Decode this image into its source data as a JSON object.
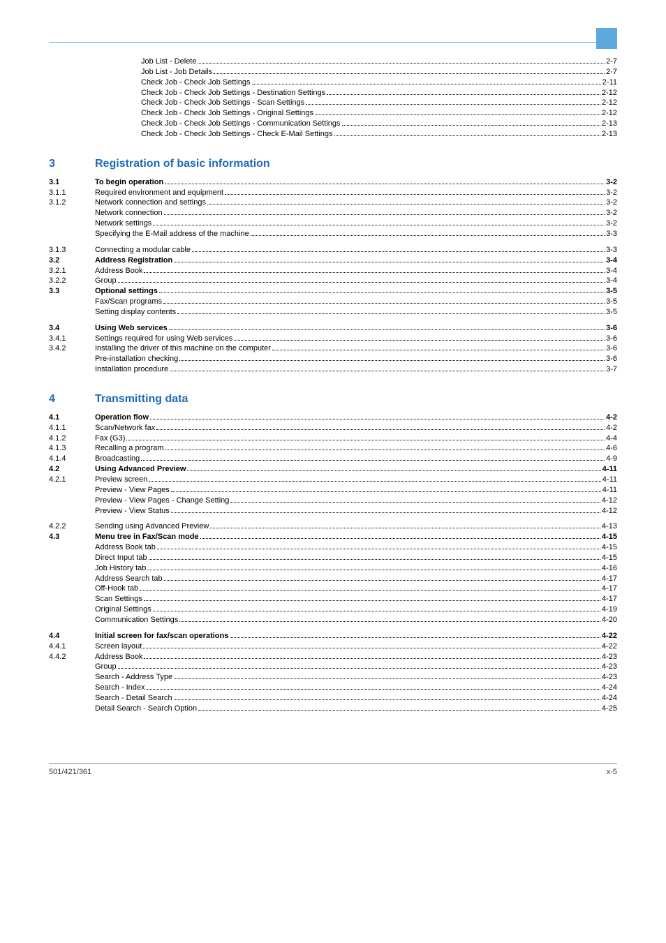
{
  "top_block": {
    "indent": 132,
    "lines": [
      {
        "label": "Job List - Delete",
        "page": "2-7"
      },
      {
        "label": "Job List - Job Details",
        "page": "2-7"
      },
      {
        "label": "Check Job - Check Job Settings",
        "page": "2-11"
      },
      {
        "label": "Check Job - Check Job Settings - Destination Settings",
        "page": "2-12"
      },
      {
        "label": "Check Job - Check Job Settings - Scan Settings",
        "page": "2-12"
      },
      {
        "label": "Check Job - Check Job Settings - Original Settings",
        "page": "2-12"
      },
      {
        "label": "Check Job - Check Job Settings - Communication Settings",
        "page": "2-13"
      },
      {
        "label": "Check Job - Check Job Settings - Check E-Mail Settings",
        "page": "2-13"
      }
    ]
  },
  "sections": [
    {
      "num": "3",
      "title": "Registration of basic information",
      "groups": [
        {
          "entries": [
            {
              "num": "3.1",
              "bold": true,
              "lines": [
                {
                  "label": "To begin operation",
                  "page": "3-2",
                  "bold": true
                }
              ]
            },
            {
              "num": "3.1.1",
              "lines": [
                {
                  "label": "Required environment and equipment",
                  "page": "3-2"
                }
              ]
            },
            {
              "num": "3.1.2",
              "lines": [
                {
                  "label": "Network connection and settings",
                  "page": "3-2"
                },
                {
                  "label": "Network connection",
                  "page": "3-2"
                },
                {
                  "label": "Network settings",
                  "page": "3-2"
                },
                {
                  "label": "Specifying the E-Mail address of the machine",
                  "page": "3-3"
                }
              ]
            }
          ]
        },
        {
          "gap": true,
          "entries": [
            {
              "num": "3.1.3",
              "lines": [
                {
                  "label": "Connecting a modular cable",
                  "page": "3-3"
                }
              ]
            },
            {
              "num": "3.2",
              "bold": true,
              "lines": [
                {
                  "label": "Address Registration",
                  "page": "3-4",
                  "bold": true
                }
              ]
            },
            {
              "num": "3.2.1",
              "lines": [
                {
                  "label": "Address Book",
                  "page": "3-4"
                }
              ]
            },
            {
              "num": "3.2.2",
              "lines": [
                {
                  "label": "Group",
                  "page": "3-4"
                }
              ]
            },
            {
              "num": "3.3",
              "bold": true,
              "lines": [
                {
                  "label": "Optional settings",
                  "page": "3-5",
                  "bold": true
                },
                {
                  "label": "Fax/Scan programs",
                  "page": "3-5"
                },
                {
                  "label": "Setting display contents",
                  "page": "3-5"
                }
              ]
            }
          ]
        },
        {
          "gap": true,
          "entries": [
            {
              "num": "3.4",
              "bold": true,
              "lines": [
                {
                  "label": "Using Web services",
                  "page": "3-6",
                  "bold": true
                }
              ]
            },
            {
              "num": "3.4.1",
              "lines": [
                {
                  "label": "Settings required for using Web services",
                  "page": "3-6"
                }
              ]
            },
            {
              "num": "3.4.2",
              "lines": [
                {
                  "label": "Installing the driver of this machine on the computer",
                  "page": "3-6"
                },
                {
                  "label": "Pre-installation checking",
                  "page": "3-6"
                },
                {
                  "label": "Installation procedure",
                  "page": "3-7"
                }
              ]
            }
          ]
        }
      ]
    },
    {
      "num": "4",
      "title": "Transmitting data",
      "groups": [
        {
          "entries": [
            {
              "num": "4.1",
              "bold": true,
              "lines": [
                {
                  "label": "Operation flow",
                  "page": "4-2",
                  "bold": true
                }
              ]
            },
            {
              "num": "4.1.1",
              "lines": [
                {
                  "label": "Scan/Network fax",
                  "page": "4-2"
                }
              ]
            },
            {
              "num": "4.1.2",
              "lines": [
                {
                  "label": "Fax (G3)",
                  "page": "4-4"
                }
              ]
            },
            {
              "num": "4.1.3",
              "lines": [
                {
                  "label": "Recalling a program",
                  "page": "4-6"
                }
              ]
            },
            {
              "num": "4.1.4",
              "lines": [
                {
                  "label": "Broadcasting",
                  "page": "4-9"
                }
              ]
            },
            {
              "num": "4.2",
              "bold": true,
              "lines": [
                {
                  "label": "Using Advanced Preview",
                  "page": "4-11",
                  "bold": true
                }
              ]
            },
            {
              "num": "4.2.1",
              "lines": [
                {
                  "label": "Preview screen",
                  "page": "4-11"
                },
                {
                  "label": "Preview - View Pages",
                  "page": "4-11"
                },
                {
                  "label": "Preview - View Pages - Change Setting",
                  "page": "4-12"
                },
                {
                  "label": "Preview - View Status",
                  "page": "4-12"
                }
              ]
            }
          ]
        },
        {
          "gap": true,
          "entries": [
            {
              "num": "4.2.2",
              "lines": [
                {
                  "label": "Sending using Advanced Preview",
                  "page": "4-13"
                }
              ]
            },
            {
              "num": "4.3",
              "bold": true,
              "lines": [
                {
                  "label": "Menu tree in Fax/Scan mode",
                  "page": "4-15",
                  "bold": true
                },
                {
                  "label": "Address Book tab",
                  "page": "4-15"
                },
                {
                  "label": "Direct Input tab",
                  "page": "4-15"
                },
                {
                  "label": "Job History tab",
                  "page": "4-16"
                },
                {
                  "label": "Address Search tab",
                  "page": "4-17"
                },
                {
                  "label": "Off-Hook tab",
                  "page": "4-17"
                },
                {
                  "label": "Scan Settings",
                  "page": "4-17"
                },
                {
                  "label": "Original Settings",
                  "page": "4-19"
                },
                {
                  "label": "Communication Settings",
                  "page": "4-20"
                }
              ]
            }
          ]
        },
        {
          "gap": true,
          "entries": [
            {
              "num": "4.4",
              "bold": true,
              "lines": [
                {
                  "label": "Initial screen for fax/scan operations",
                  "page": "4-22",
                  "bold": true
                }
              ]
            },
            {
              "num": "4.4.1",
              "lines": [
                {
                  "label": "Screen layout",
                  "page": "4-22"
                }
              ]
            },
            {
              "num": "4.4.2",
              "lines": [
                {
                  "label": "Address Book",
                  "page": "4-23"
                },
                {
                  "label": "Group",
                  "page": "4-23"
                },
                {
                  "label": "Search - Address Type",
                  "page": "4-23"
                },
                {
                  "label": "Search - Index",
                  "page": "4-24"
                },
                {
                  "label": "Search - Detail Search",
                  "page": "4-24"
                },
                {
                  "label": "Detail Search - Search Option",
                  "page": "4-25"
                }
              ]
            }
          ]
        }
      ]
    }
  ],
  "footer": {
    "left": "501/421/361",
    "right": "x-5"
  }
}
